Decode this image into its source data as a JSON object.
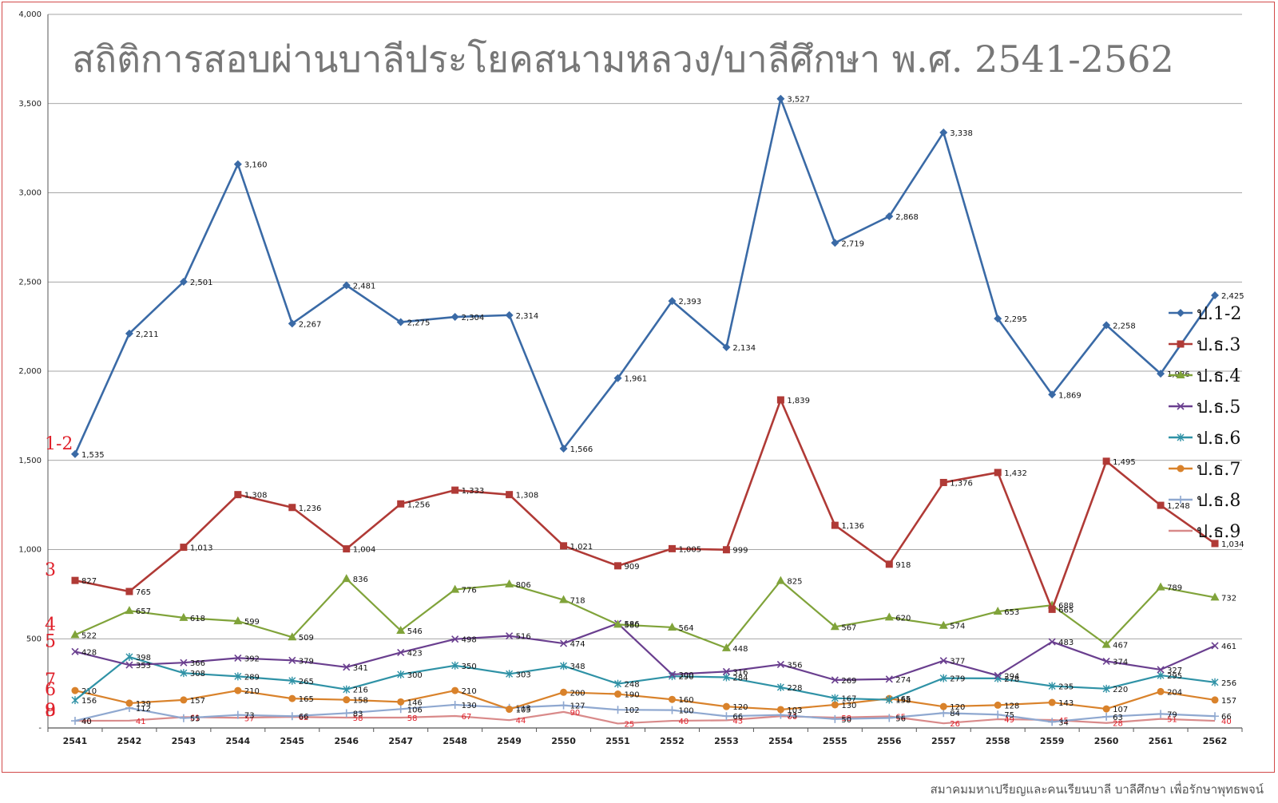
{
  "chart_data": {
    "type": "line",
    "title": "สถิติการสอบผ่านบาลีประโยคสนามหลวง/บาลีศึกษา พ.ศ. 2541-2562",
    "xlabel": "",
    "ylabel": "",
    "ylim": [
      0,
      4000
    ],
    "yticks": [
      "-",
      "500",
      "1,000",
      "1,500",
      "2,000",
      "2,500",
      "3,000",
      "3,500",
      "4,000"
    ],
    "grid": true,
    "legend_position": "right",
    "categories": [
      "2541",
      "2542",
      "2543",
      "2544",
      "2545",
      "2546",
      "2547",
      "2548",
      "2549",
      "2550",
      "2551",
      "2552",
      "2553",
      "2554",
      "2555",
      "2556",
      "2557",
      "2558",
      "2559",
      "2560",
      "2561",
      "2562"
    ],
    "series": [
      {
        "name": "ป.1-2",
        "color": "#3a6aa6",
        "marker": "diamond",
        "side_label": "1-2",
        "values": [
          1535,
          2211,
          2501,
          3160,
          2267,
          2481,
          2275,
          2304,
          2314,
          1566,
          1961,
          2393,
          2134,
          3527,
          2719,
          2868,
          3338,
          2295,
          1869,
          2258,
          1986,
          2425
        ]
      },
      {
        "name": "ป.ธ.3",
        "color": "#b03a36",
        "marker": "square",
        "side_label": "3",
        "values": [
          827,
          765,
          1013,
          1308,
          1236,
          1004,
          1256,
          1333,
          1308,
          1021,
          909,
          1005,
          999,
          1839,
          1136,
          918,
          1376,
          1432,
          665,
          1495,
          1248,
          1034
        ]
      },
      {
        "name": "ป.ธ.4",
        "color": "#80a33a",
        "marker": "triangle",
        "side_label": "4",
        "values": [
          522,
          657,
          618,
          599,
          509,
          836,
          546,
          776,
          806,
          718,
          580,
          564,
          448,
          825,
          567,
          620,
          574,
          653,
          688,
          467,
          789,
          732
        ]
      },
      {
        "name": "ป.ธ.5",
        "color": "#6a3f8f",
        "marker": "x",
        "side_label": "5",
        "values": [
          428,
          353,
          366,
          392,
          379,
          341,
          423,
          498,
          516,
          474,
          586,
          300,
          316,
          356,
          269,
          274,
          377,
          294,
          483,
          374,
          327,
          461
        ]
      },
      {
        "name": "ป.ธ.6",
        "color": "#2f92a6",
        "marker": "star",
        "side_label": "6",
        "values": [
          156,
          398,
          308,
          289,
          265,
          216,
          300,
          350,
          303,
          348,
          248,
          290,
          284,
          228,
          167,
          158,
          279,
          278,
          235,
          220,
          295,
          256
        ]
      },
      {
        "name": "ป.ธ.7",
        "color": "#d9822b",
        "marker": "circle",
        "side_label": "7",
        "values": [
          210,
          139,
          157,
          210,
          165,
          158,
          146,
          210,
          105,
          200,
          190,
          160,
          120,
          103,
          130,
          165,
          120,
          128,
          143,
          107,
          204,
          157
        ]
      },
      {
        "name": "ป.ธ.8",
        "color": "#8fa8d0",
        "marker": "plus",
        "side_label": "8",
        "values": [
          40,
          112,
          55,
          73,
          66,
          83,
          106,
          130,
          113,
          127,
          102,
          100,
          66,
          73,
          50,
          56,
          84,
          75,
          34,
          63,
          79,
          66
        ]
      },
      {
        "name": "ป.ธ.9",
        "color": "#d98a8a",
        "marker": "none",
        "side_label": "9",
        "values": [
          40,
          41,
          61,
          57,
          62,
          58,
          58,
          67,
          44,
          90,
          25,
          40,
          43,
          66,
          58,
          65,
          26,
          49,
          45,
          28,
          51,
          40
        ]
      }
    ]
  },
  "footer": "สมาคมมหาเปรียญและคนเรียนบาลี บาลีศึกษา เพื่อรักษาพุทธพจน์"
}
